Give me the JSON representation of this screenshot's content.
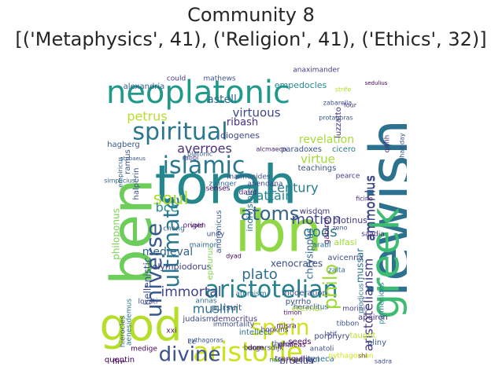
{
  "chart_data": {
    "type": "wordcloud",
    "title_line1": "Community 8",
    "title_line2": "[('Metaphysics', 41), ('Religion', 41), ('Ethics', 32)]",
    "colormap": "viridis",
    "background": "#ffffff",
    "words": [
      {
        "text": "torah",
        "color": "#24878e"
      },
      {
        "text": "jewish",
        "color": "#2c728e"
      },
      {
        "text": "ibn",
        "color": "#8fd744"
      },
      {
        "text": "ben",
        "color": "#6ccd5a"
      },
      {
        "text": "god",
        "color": "#b5de2b"
      },
      {
        "text": "greek",
        "color": "#3fbc73"
      },
      {
        "text": "neoplatonic",
        "color": "#1f9a8a"
      },
      {
        "text": "islamic",
        "color": "#2a788e"
      },
      {
        "text": "spiritual",
        "color": "#2a768e"
      },
      {
        "text": "aristotle",
        "color": "#cde11d"
      },
      {
        "text": "aristotelian",
        "color": "#26818e"
      },
      {
        "text": "universe",
        "color": "#38598c"
      },
      {
        "text": "ultimate",
        "color": "#2a778e"
      },
      {
        "text": "atoms",
        "color": "#33628d"
      },
      {
        "text": "divine",
        "color": "#3b528b"
      },
      {
        "text": "spain",
        "color": "#d2e21b"
      },
      {
        "text": "soul",
        "color": "#addc30"
      },
      {
        "text": "philo",
        "color": "#a0da39"
      },
      {
        "text": "aristotelianism",
        "color": "#443983"
      },
      {
        "text": "immortal",
        "color": "#414487"
      },
      {
        "text": "muslim",
        "color": "#2c718e"
      },
      {
        "text": "plato",
        "color": "#2e6e8e"
      },
      {
        "text": "averroes",
        "color": "#46327e"
      },
      {
        "text": "century",
        "color": "#287c8e"
      },
      {
        "text": "petrus",
        "color": "#b8de29"
      },
      {
        "text": "astell",
        "color": "#2f6c8e"
      },
      {
        "text": "virtuous",
        "color": "#3e4a89"
      },
      {
        "text": "virtue",
        "color": "#a2da37"
      },
      {
        "text": "revelation",
        "color": "#a5db36"
      },
      {
        "text": "ammonius",
        "color": "#3e4989"
      },
      {
        "text": "motion",
        "color": "#404688"
      },
      {
        "text": "gods",
        "color": "#2c738e"
      },
      {
        "text": "attain",
        "color": "#24868e"
      },
      {
        "text": "bce",
        "color": "#21918c"
      },
      {
        "text": "medieval",
        "color": "#32648e"
      },
      {
        "text": "hellenistic",
        "color": "#3c4f8a"
      },
      {
        "text": "chrysippus",
        "color": "#31678e"
      },
      {
        "text": "mussar",
        "color": "#2d708e"
      },
      {
        "text": "proclus",
        "color": "#433e85"
      },
      {
        "text": "xenocrates",
        "color": "#3b518b"
      },
      {
        "text": "eternal",
        "color": "#b0dd2f"
      },
      {
        "text": "ribash",
        "color": "#472f7d"
      },
      {
        "text": "alexandria",
        "color": "#375a8c"
      },
      {
        "text": "empedocles",
        "color": "#25858e"
      },
      {
        "text": "diogenes",
        "color": "#3f4788"
      },
      {
        "text": "indivisible",
        "color": "#2a778e"
      },
      {
        "text": "maimonides",
        "color": "#3e4c8a"
      },
      {
        "text": "halperin",
        "color": "#3a538b"
      },
      {
        "text": "philoponus",
        "color": "#7ad151"
      },
      {
        "text": "olympiodorus",
        "color": "#424086"
      },
      {
        "text": "judaism",
        "color": "#3d4d8a"
      },
      {
        "text": "avicenna",
        "color": "#3d4e8a"
      },
      {
        "text": "heraclitus",
        "color": "#38598c"
      },
      {
        "text": "pursuit",
        "color": "#375a8c"
      },
      {
        "text": "intellect",
        "color": "#2d708e"
      },
      {
        "text": "alfasi",
        "color": "#a0da39"
      },
      {
        "text": "wisdom",
        "color": "#463480"
      },
      {
        "text": "gabirol",
        "color": "#481769"
      },
      {
        "text": "ammonius",
        "color": "#3e4989"
      },
      {
        "text": "abendana",
        "color": "#3f4889"
      },
      {
        "text": "alcmaeon",
        "color": "#482071"
      },
      {
        "text": "teachings",
        "color": "#3b528b"
      },
      {
        "text": "cicero",
        "color": "#2a788e"
      },
      {
        "text": "pearce",
        "color": "#424086"
      },
      {
        "text": "plotinus",
        "color": "#443a83"
      },
      {
        "text": "luzzatto",
        "color": "#472c7a"
      },
      {
        "text": "moderation",
        "color": "#3c4f8a"
      },
      {
        "text": "prodicus",
        "color": "#2d708e"
      },
      {
        "text": "parmenides",
        "color": "#26828e"
      },
      {
        "text": "morinis",
        "color": "#423f85"
      },
      {
        "text": "tibbon",
        "color": "#3c508b"
      },
      {
        "text": "apeiron",
        "color": "#46337f"
      },
      {
        "text": "taught",
        "color": "#bade28"
      },
      {
        "text": "pliny",
        "color": "#38588c"
      },
      {
        "text": "porphyry",
        "color": "#3e4989"
      },
      {
        "text": "seeds",
        "color": "#440154"
      },
      {
        "text": "anatoli",
        "color": "#3e4a89"
      },
      {
        "text": "thales",
        "color": "#3b518b"
      },
      {
        "text": "burgersdijk",
        "color": "#3f4788"
      },
      {
        "text": "dorn",
        "color": "#440154"
      },
      {
        "text": "hopkins",
        "color": "#453581"
      },
      {
        "text": "misra",
        "color": "#481b6d"
      },
      {
        "text": "democritus",
        "color": "#443983"
      },
      {
        "text": "immortality",
        "color": "#3d4d8a"
      },
      {
        "text": "annas",
        "color": "#2c718e"
      },
      {
        "text": "aenesidemus",
        "color": "#2a768e"
      },
      {
        "text": "school",
        "color": "#3b528b"
      },
      {
        "text": "fire",
        "color": "#440154"
      },
      {
        "text": "ce",
        "color": "#3b528b"
      },
      {
        "text": "hierocles",
        "color": "#375b8d"
      },
      {
        "text": "atomism",
        "color": "#2e6f8e"
      },
      {
        "text": "timon",
        "color": "#471365"
      },
      {
        "text": "pyrrho",
        "color": "#3d4e8a"
      },
      {
        "text": "epicurus",
        "color": "#84d44b"
      },
      {
        "text": "andronicus",
        "color": "#375a8c"
      },
      {
        "text": "chong",
        "color": "#2f6b8e"
      },
      {
        "text": "maimon",
        "color": "#31668e"
      },
      {
        "text": "senses",
        "color": "#440154"
      },
      {
        "text": "zwinger",
        "color": "#306a8e"
      },
      {
        "text": "unity",
        "color": "#3e4989"
      },
      {
        "text": "daud",
        "color": "#482576"
      },
      {
        "text": "paradoxes",
        "color": "#3a548c"
      },
      {
        "text": "rabbi",
        "color": "#443983"
      },
      {
        "text": "ramus",
        "color": "#3d4e8a"
      },
      {
        "text": "hagberg",
        "color": "#39568c"
      },
      {
        "text": "platonic",
        "color": "#38598c"
      },
      {
        "text": "could",
        "color": "#453882"
      },
      {
        "text": "mathews",
        "color": "#3b528b"
      },
      {
        "text": "anaximander",
        "color": "#443a83"
      },
      {
        "text": "strife",
        "color": "#b5de2b"
      },
      {
        "text": "four",
        "color": "#482878"
      },
      {
        "text": "zabarella",
        "color": "#3c4f8a"
      },
      {
        "text": "qafih",
        "color": "#482475"
      },
      {
        "text": "halliday",
        "color": "#3b528b"
      },
      {
        "text": "empiricus",
        "color": "#33638d"
      },
      {
        "text": "simplicius",
        "color": "#33638d"
      },
      {
        "text": "void",
        "color": "#440154"
      },
      {
        "text": "origen",
        "color": "#481d6f"
      },
      {
        "text": "dyad",
        "color": "#440154"
      },
      {
        "text": "arabi",
        "color": "#2d708e"
      },
      {
        "text": "zeno",
        "color": "#3a548c"
      },
      {
        "text": "ficino",
        "color": "#482173"
      },
      {
        "text": "saadia",
        "color": "#482878"
      },
      {
        "text": "zalta",
        "color": "#2c728e"
      },
      {
        "text": "lovati",
        "color": "#404688"
      },
      {
        "text": "shi",
        "color": "#481668"
      },
      {
        "text": "sadra",
        "color": "#3e4c8a"
      },
      {
        "text": "tranquility",
        "color": "#481b6d"
      },
      {
        "text": "seneca",
        "color": "#2c718e"
      },
      {
        "text": "pythagorean",
        "color": "#d0e11c"
      },
      {
        "text": "protagoras",
        "color": "#39568c"
      },
      {
        "text": "nasr",
        "color": "#2a768e"
      },
      {
        "text": "pythagoras",
        "color": "#3a548c"
      },
      {
        "text": "medige",
        "color": "#440154"
      },
      {
        "text": "latif",
        "color": "#3f4889"
      },
      {
        "text": "stobaeus",
        "color": "#38588c"
      },
      {
        "text": "sedulius",
        "color": "#440154"
      },
      {
        "text": "xxi",
        "color": "#471164"
      },
      {
        "text": "phaleas",
        "color": "#440154"
      },
      {
        "text": "quentin",
        "color": "#440154"
      },
      {
        "text": "ziv",
        "color": "#39558c"
      }
    ]
  }
}
